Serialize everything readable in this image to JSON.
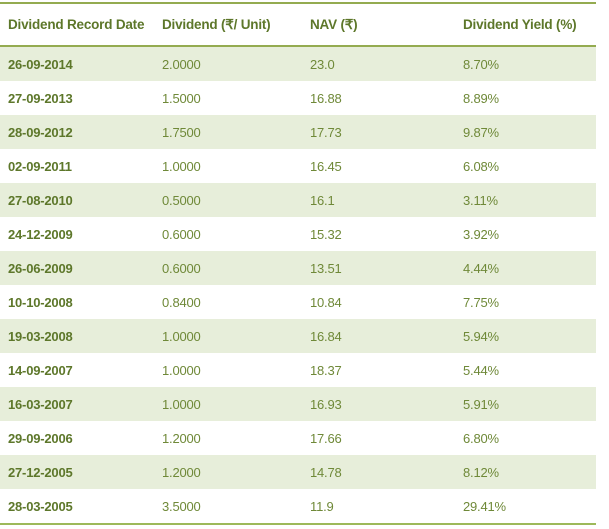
{
  "chart_data": {
    "type": "table",
    "columns": [
      "Dividend Record Date",
      "Dividend (₹/ Unit)",
      "NAV (₹)",
      "Dividend Yield (%)"
    ],
    "rows": [
      [
        "26-09-2014",
        "2.0000",
        "23.0",
        "8.70%"
      ],
      [
        "27-09-2013",
        "1.5000",
        "16.88",
        "8.89%"
      ],
      [
        "28-09-2012",
        "1.7500",
        "17.73",
        "9.87%"
      ],
      [
        "02-09-2011",
        "1.0000",
        "16.45",
        "6.08%"
      ],
      [
        "27-08-2010",
        "0.5000",
        "16.1",
        "3.11%"
      ],
      [
        "24-12-2009",
        "0.6000",
        "15.32",
        "3.92%"
      ],
      [
        "26-06-2009",
        "0.6000",
        "13.51",
        "4.44%"
      ],
      [
        "10-10-2008",
        "0.8400",
        "10.84",
        "7.75%"
      ],
      [
        "19-03-2008",
        "1.0000",
        "16.84",
        "5.94%"
      ],
      [
        "14-09-2007",
        "1.0000",
        "18.37",
        "5.44%"
      ],
      [
        "16-03-2007",
        "1.0000",
        "16.93",
        "5.91%"
      ],
      [
        "29-09-2006",
        "1.2000",
        "17.66",
        "6.80%"
      ],
      [
        "27-12-2005",
        "1.2000",
        "14.78",
        "8.12%"
      ],
      [
        "28-03-2005",
        "3.5000",
        "11.9",
        "29.41%"
      ]
    ],
    "layout": {
      "grid": "horizontal rules top, under header, bottom",
      "zebra_striping": "odd data rows shaded light green starting with first row"
    }
  },
  "colors": {
    "rule_line": "#94ab50",
    "bottom_rule_line": "#9db95a",
    "alt_row_bg": "#e7eeda",
    "header_text": "#5d772a",
    "date_text": "#5d772a",
    "value_text": "#6f8938",
    "background": "#ffffff"
  }
}
